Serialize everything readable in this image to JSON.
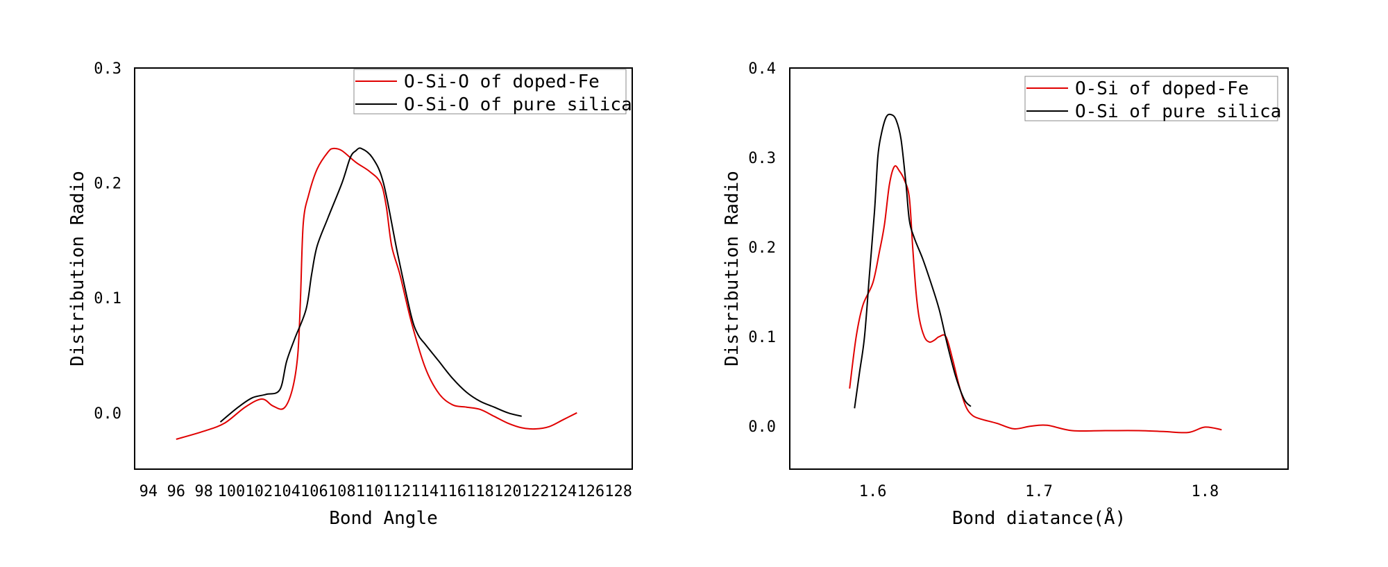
{
  "chart_data": [
    {
      "type": "line",
      "title": "",
      "xlabel": "Bond Angle",
      "ylabel": "Distribution Radio",
      "xlim": [
        93,
        129
      ],
      "ylim": [
        -0.049,
        0.3
      ],
      "xticks": [
        94,
        96,
        98,
        100,
        102,
        104,
        106,
        108,
        110,
        112,
        114,
        116,
        118,
        120,
        122,
        124,
        126,
        128
      ],
      "xtick_labels": [
        "94",
        "96",
        "98",
        "100",
        "102",
        "104",
        "106",
        "108",
        "110",
        "112",
        "114",
        "116",
        "118",
        "120",
        "122",
        "124",
        "126",
        "128"
      ],
      "yticks": [
        0.0,
        0.1,
        0.2,
        0.3
      ],
      "ytick_labels": [
        "0.0",
        "0.1",
        "0.2",
        "0.3"
      ],
      "grid": false,
      "legend_position": "top-right",
      "series": [
        {
          "name": "O-Si-O of doped-Fe",
          "color": "#e00000",
          "x": [
            96,
            98,
            99.5,
            101,
            102.2,
            103,
            103.8,
            104.4,
            104.8,
            105,
            105.2,
            105.6,
            106.2,
            107,
            107.4,
            108,
            109,
            110,
            110.8,
            111.2,
            111.6,
            112.2,
            113,
            114,
            115,
            116,
            117,
            118,
            119,
            120,
            121,
            122,
            123,
            124,
            125
          ],
          "y": [
            -0.023,
            -0.016,
            -0.009,
            0.005,
            0.012,
            0.006,
            0.004,
            0.02,
            0.05,
            0.1,
            0.165,
            0.19,
            0.212,
            0.227,
            0.23,
            0.228,
            0.218,
            0.21,
            0.2,
            0.18,
            0.145,
            0.12,
            0.08,
            0.04,
            0.017,
            0.007,
            0.005,
            0.003,
            -0.003,
            -0.009,
            -0.013,
            -0.014,
            -0.012,
            -0.006,
            0.0
          ]
        },
        {
          "name": "O-Si-O of pure silica",
          "color": "#000000",
          "x": [
            99.2,
            100.5,
            101.5,
            102.5,
            103.5,
            104,
            104.6,
            105.4,
            105.8,
            106.2,
            107,
            108,
            108.6,
            109,
            109.4,
            110.2,
            111,
            112,
            113,
            113.5,
            114,
            115,
            116,
            117,
            118,
            119,
            120,
            121
          ],
          "y": [
            -0.008,
            0.005,
            0.013,
            0.016,
            0.02,
            0.045,
            0.065,
            0.09,
            0.12,
            0.145,
            0.17,
            0.2,
            0.222,
            0.228,
            0.23,
            0.222,
            0.2,
            0.14,
            0.085,
            0.068,
            0.06,
            0.045,
            0.03,
            0.018,
            0.01,
            0.005,
            0.0,
            -0.003
          ]
        }
      ]
    },
    {
      "type": "line",
      "title": "",
      "xlabel": "Bond diatance(Å)",
      "ylabel": "Distribution Radio",
      "xlim": [
        1.55,
        1.85
      ],
      "ylim": [
        -0.048,
        0.4
      ],
      "xticks": [
        1.6,
        1.7,
        1.8
      ],
      "xtick_labels": [
        "1.6",
        "1.7",
        "1.8"
      ],
      "yticks": [
        0.0,
        0.1,
        0.2,
        0.3,
        0.4
      ],
      "ytick_labels": [
        "0.0",
        "0.1",
        "0.2",
        "0.3",
        "0.4"
      ],
      "grid": false,
      "legend_position": "top-right",
      "series": [
        {
          "name": "O-Si of doped-Fe",
          "color": "#e00000",
          "x": [
            1.586,
            1.59,
            1.594,
            1.6,
            1.604,
            1.607,
            1.61,
            1.613,
            1.616,
            1.619,
            1.622,
            1.624,
            1.626,
            1.628,
            1.631,
            1.634,
            1.637,
            1.64,
            1.644,
            1.648,
            1.652,
            1.656,
            1.66,
            1.665,
            1.675,
            1.685,
            1.695,
            1.705,
            1.72,
            1.74,
            1.76,
            1.775,
            1.79,
            1.8,
            1.81
          ],
          "y": [
            0.042,
            0.1,
            0.135,
            0.16,
            0.195,
            0.225,
            0.27,
            0.29,
            0.285,
            0.275,
            0.255,
            0.2,
            0.15,
            0.12,
            0.1,
            0.094,
            0.096,
            0.1,
            0.1,
            0.075,
            0.045,
            0.022,
            0.012,
            0.008,
            0.003,
            -0.003,
            0.0,
            0.001,
            -0.005,
            -0.005,
            -0.005,
            -0.006,
            -0.007,
            -0.001,
            -0.004
          ]
        },
        {
          "name": "O-Si of pure silica",
          "color": "#000000",
          "x": [
            1.589,
            1.592,
            1.595,
            1.598,
            1.601,
            1.603,
            1.605,
            1.608,
            1.611,
            1.614,
            1.617,
            1.62,
            1.622,
            1.625,
            1.63,
            1.635,
            1.64,
            1.645,
            1.65,
            1.655,
            1.659
          ],
          "y": [
            0.02,
            0.06,
            0.1,
            0.17,
            0.24,
            0.3,
            0.325,
            0.345,
            0.348,
            0.342,
            0.32,
            0.27,
            0.23,
            0.21,
            0.187,
            0.16,
            0.13,
            0.09,
            0.055,
            0.03,
            0.022
          ]
        }
      ]
    }
  ]
}
